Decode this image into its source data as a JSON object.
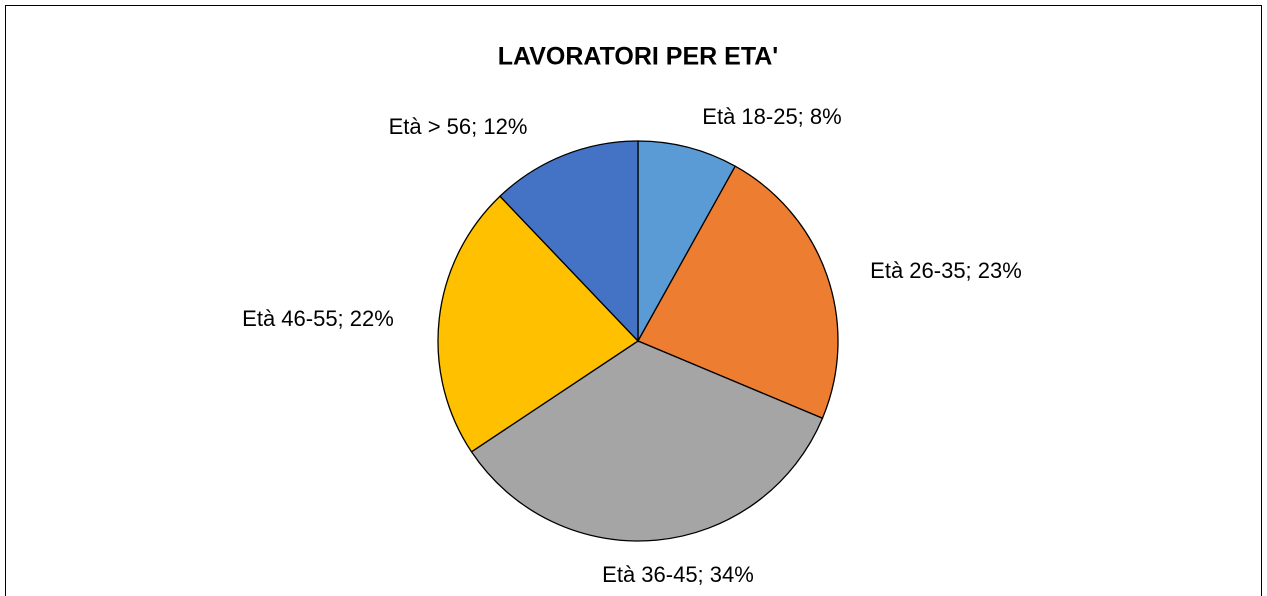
{
  "chart_data": {
    "type": "pie",
    "title": "LAVORATORI PER ETA'",
    "categories": [
      "Età 18-25",
      "Età 26-35",
      "Età 36-45",
      "Età 46-55",
      "Età > 56"
    ],
    "values": [
      8,
      23,
      34,
      22,
      12
    ],
    "value_labels": [
      "Età 18-25; 8%",
      "Età 26-35; 23%",
      "Età 36-45; 34%",
      "Età 46-55; 22%",
      "Età > 56; 12%"
    ],
    "colors": [
      "#5b9bd5",
      "#ed7d31",
      "#a5a5a5",
      "#ffc000",
      "#4472c4"
    ]
  }
}
